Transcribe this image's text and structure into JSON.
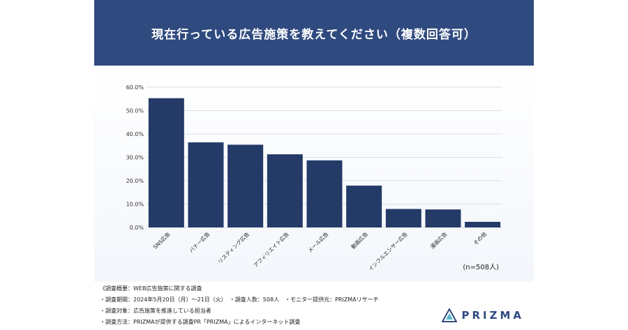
{
  "header": {
    "title": "現在行っている広告施策を教えてください（複数回答可）"
  },
  "sample_note": "(n=508人)",
  "footer": {
    "lines": [
      "《調査概要：WEB広告施策に関する調査",
      "・調査期間：2024年5月20日（月）～21日（火）　・調査人数：508人　・モニター提供元：PRIZMAリサーチ",
      "・調査対象：広告施策を推進している担当者",
      "・調査方法：PRIZMAが提供する調査PR「PRIZMA」によるインターネット調査"
    ]
  },
  "logo": {
    "text": "PRIZMA",
    "icon": "prism-triangle-icon",
    "color": "#2f4a7f"
  },
  "chart_data": {
    "type": "bar",
    "categories": [
      "SNS広告",
      "バナー広告",
      "リスティング広告",
      "アフィリエイト広告",
      "メール広告",
      "動画広告",
      "インフルエンサー広告",
      "漫画広告",
      "その他"
    ],
    "values": [
      55.3,
      36.4,
      35.4,
      31.3,
      28.7,
      17.9,
      7.9,
      7.7,
      2.4
    ],
    "ylim": [
      0,
      60
    ],
    "yticks": [
      "0.0%",
      "10.0%",
      "20.0%",
      "30.0%",
      "40.0%",
      "50.0%",
      "60.0%"
    ],
    "bar_color": "#243b68",
    "grid": true
  }
}
